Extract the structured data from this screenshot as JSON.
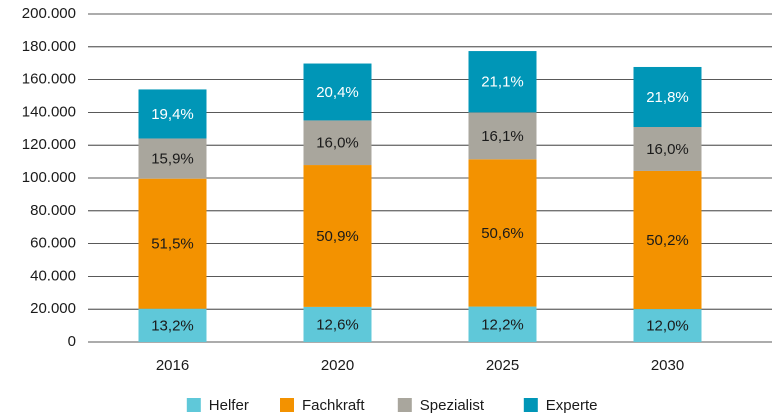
{
  "chart_data": {
    "type": "stacked_bar",
    "categories": [
      "2016",
      "2020",
      "2025",
      "2030"
    ],
    "series": [
      {
        "name": "Helfer",
        "color": "#5fc8d9",
        "values": [
          20300,
          21400,
          21600,
          20100
        ],
        "share_labels": [
          "13,2%",
          "12,6%",
          "12,2%",
          "12,0%"
        ]
      },
      {
        "name": "Fachkraft",
        "color": "#f39200",
        "values": [
          79300,
          86500,
          89800,
          84200
        ],
        "share_labels": [
          "51,5%",
          "50,9%",
          "50,6%",
          "50,2%"
        ]
      },
      {
        "name": "Spezialist",
        "color": "#a9a69d",
        "values": [
          24500,
          27200,
          28600,
          26800
        ],
        "share_labels": [
          "15,9%",
          "16,0%",
          "16,1%",
          "16,0%"
        ]
      },
      {
        "name": "Experte",
        "color": "#0096b7",
        "values": [
          29900,
          34700,
          37400,
          36600
        ],
        "share_labels": [
          "19,4%",
          "20,4%",
          "21,1%",
          "21,8%"
        ]
      }
    ],
    "ylim": [
      0,
      200000
    ],
    "yticks": [
      0,
      {
        "value": 20000,
        "label": "20.000"
      },
      {
        "value": 40000,
        "label": "40.000"
      },
      {
        "value": 60000,
        "label": "60.000"
      },
      {
        "value": 80000,
        "label": "80.000"
      },
      {
        "value": 100000,
        "label": "100.000"
      },
      {
        "value": 120000,
        "label": "120.000"
      },
      {
        "value": 140000,
        "label": "140.000"
      },
      {
        "value": 160000,
        "label": "160.000"
      },
      {
        "value": 180000,
        "label": "180.000"
      },
      {
        "value": 200000,
        "label": "200.000"
      }
    ],
    "grid": true,
    "legend": "bottom"
  }
}
